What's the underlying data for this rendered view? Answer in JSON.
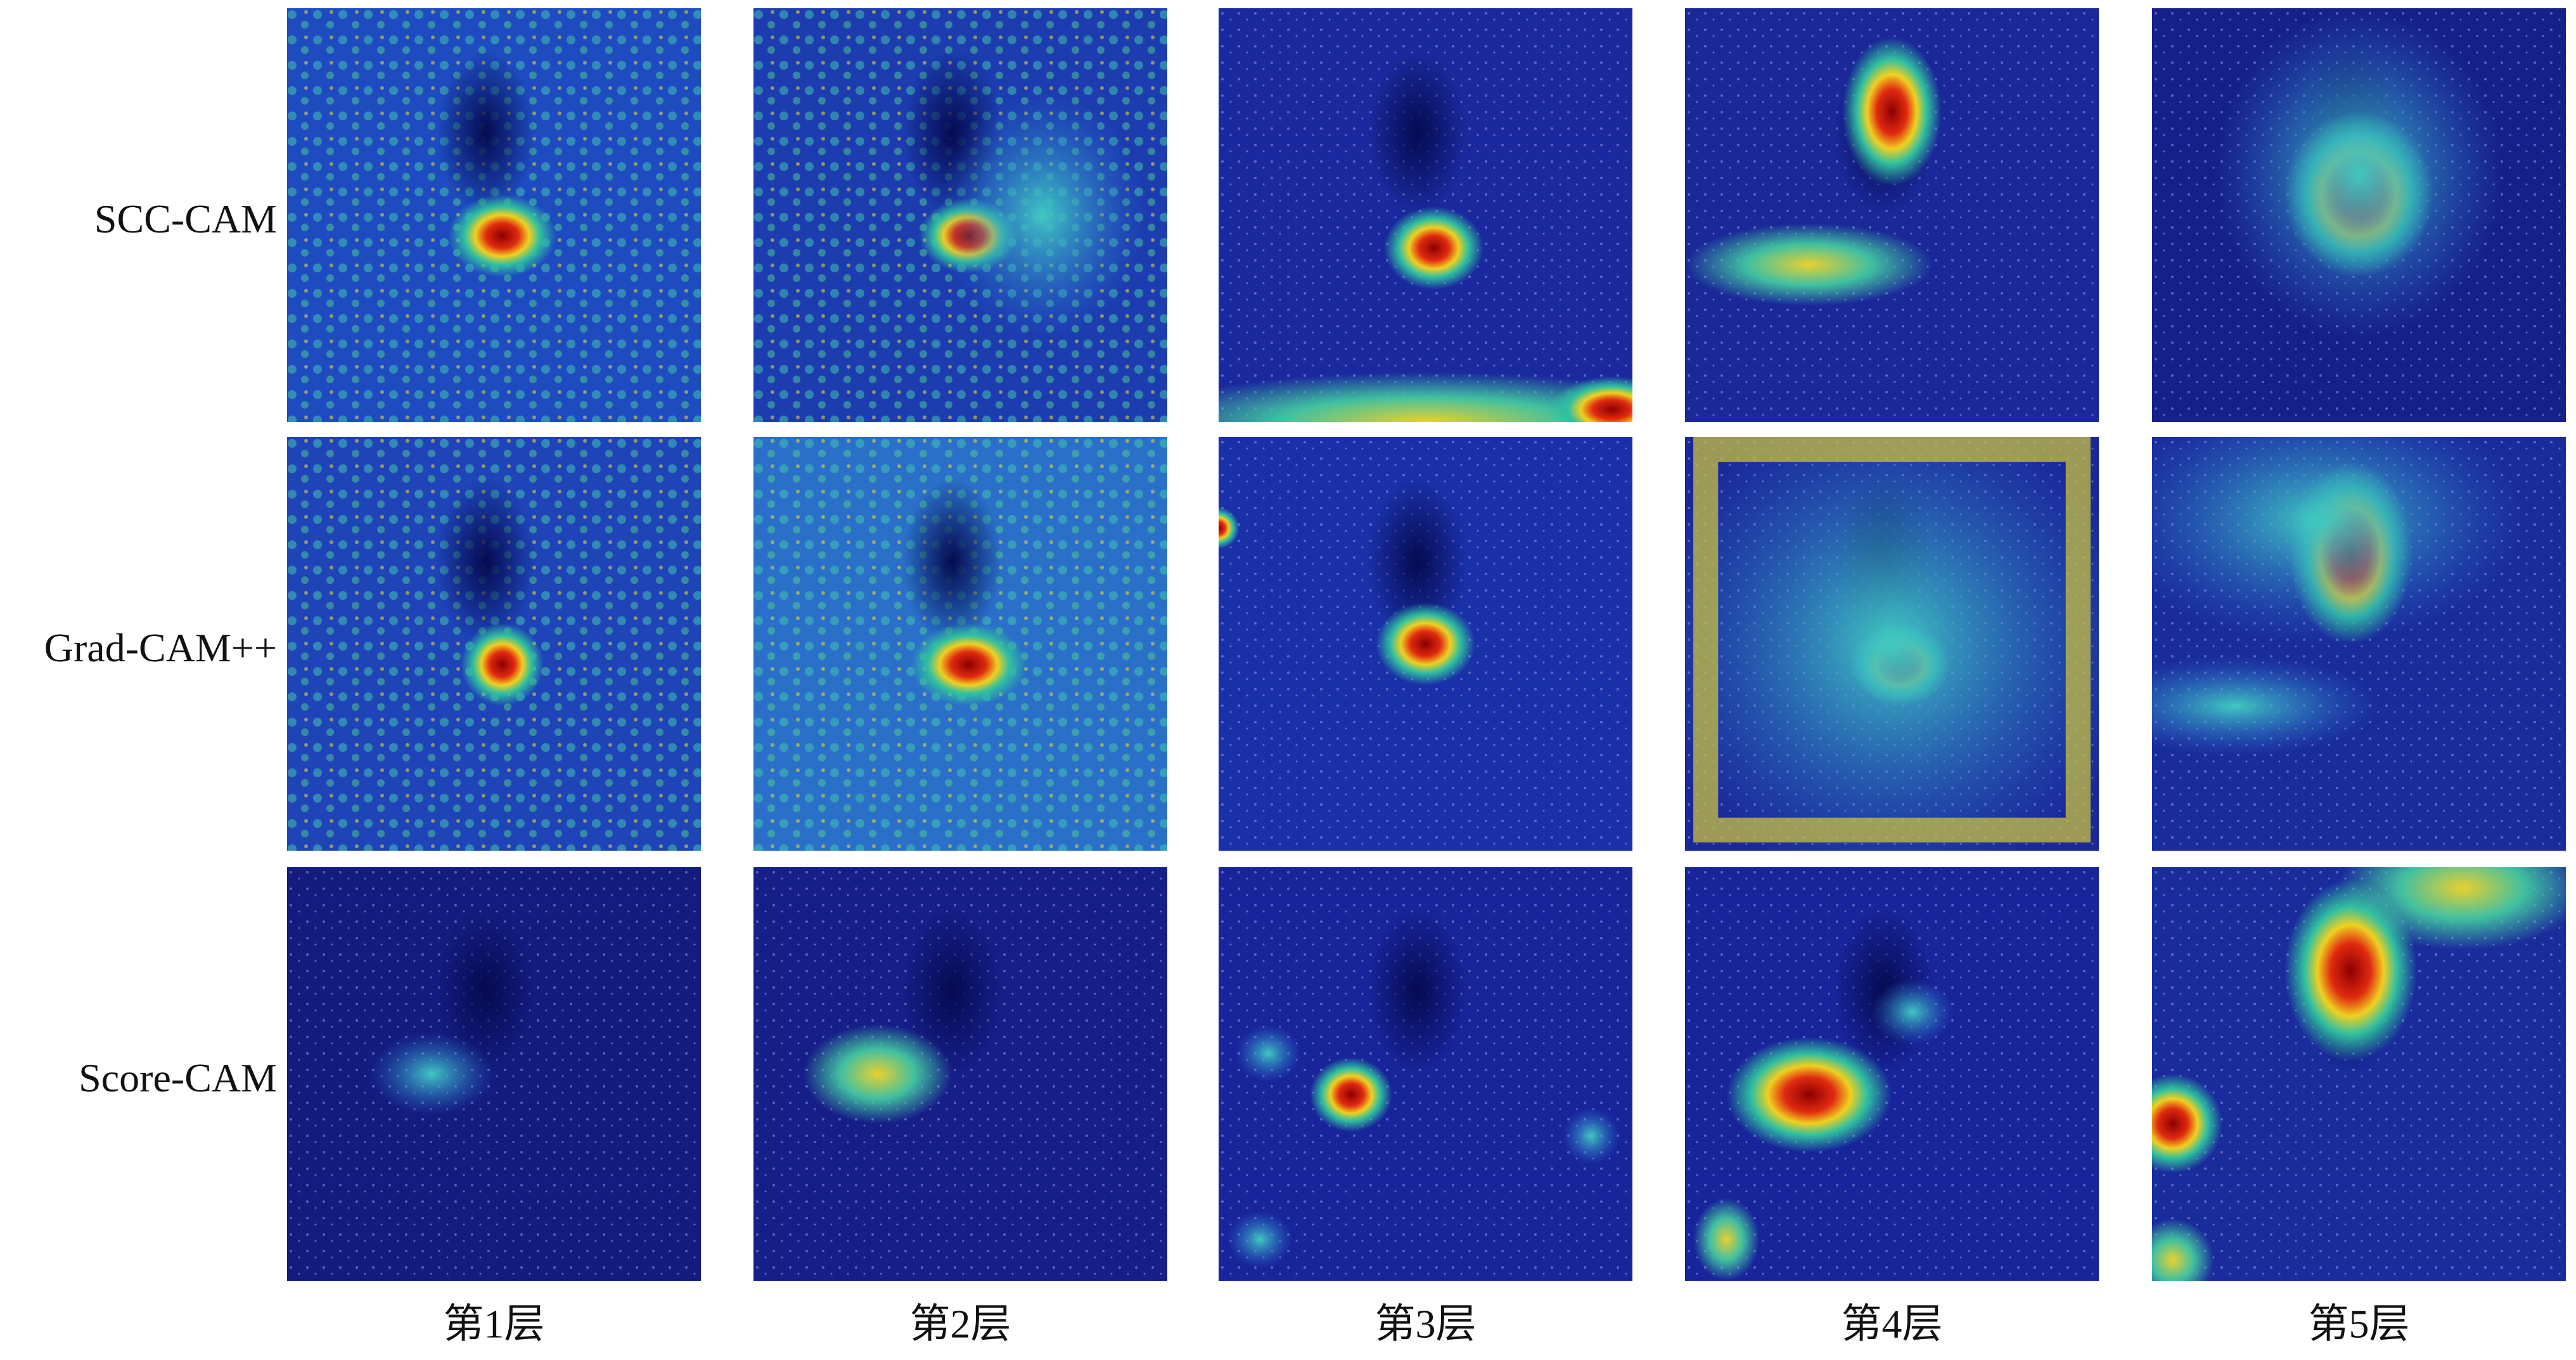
{
  "rows": [
    {
      "label": "SCC-CAM"
    },
    {
      "label": "Grad-CAM++"
    },
    {
      "label": "Score-CAM"
    }
  ],
  "columns": [
    {
      "label": "第1层"
    },
    {
      "label": "第2层"
    },
    {
      "label": "第3层"
    },
    {
      "label": "第4层"
    },
    {
      "label": "第5层"
    }
  ]
}
